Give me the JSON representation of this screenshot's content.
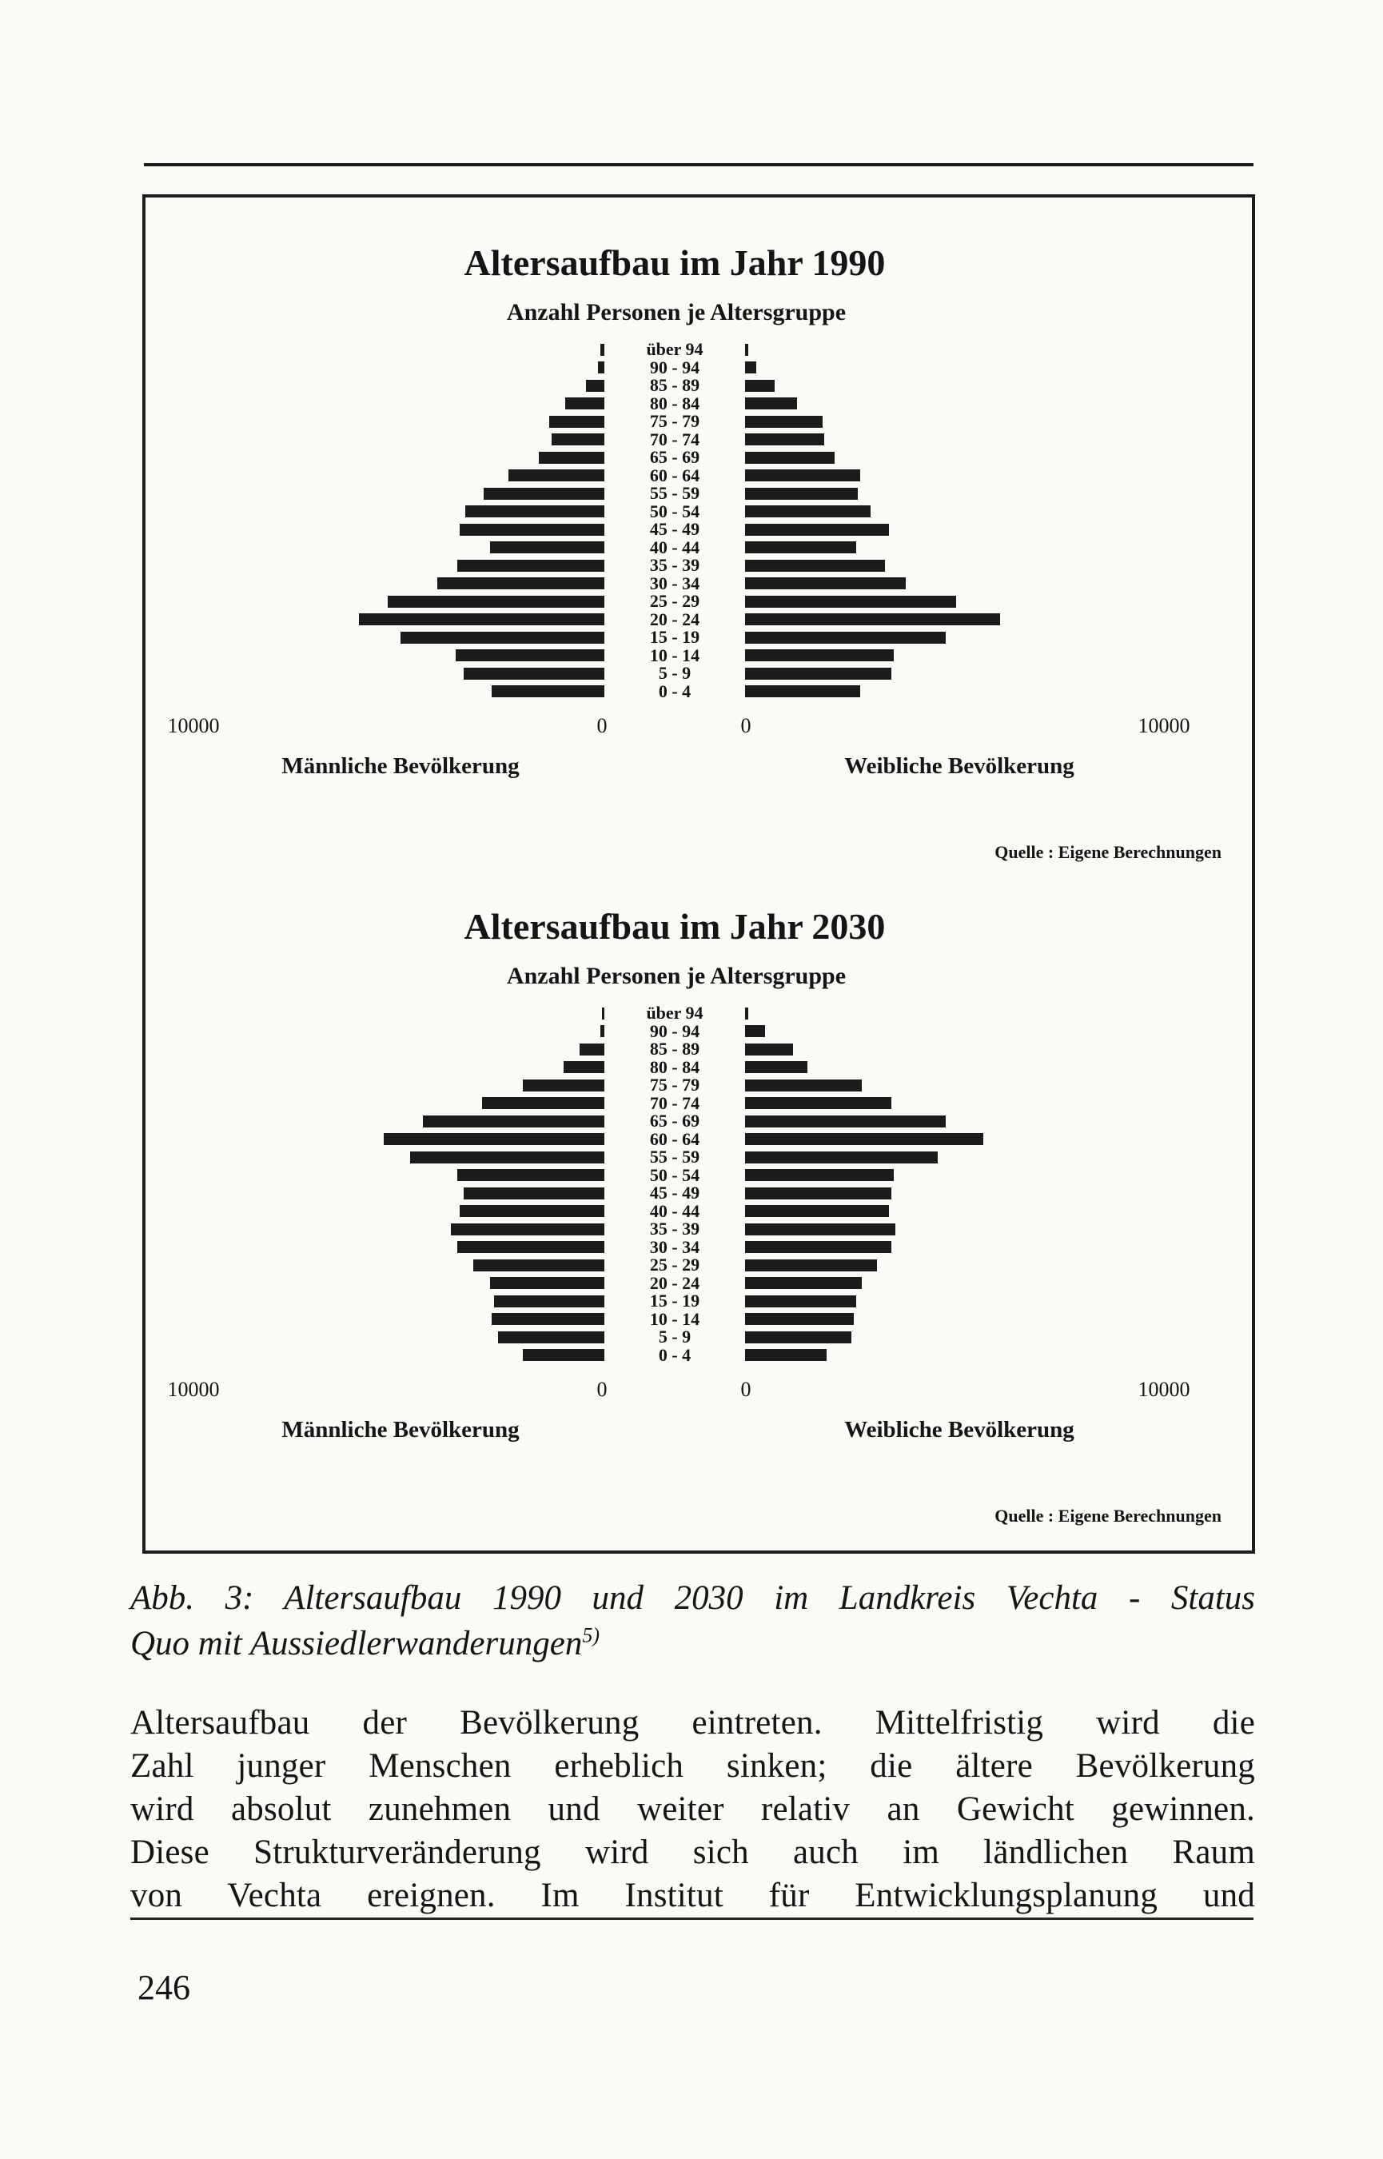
{
  "figure": {
    "caption_line1": "Abb. 3: Altersaufbau 1990 und 2030 im Landkreis Vechta - Status",
    "caption_line2": "Quo mit Aussiedlerwanderungen",
    "caption_footnote_marker": "5)"
  },
  "chart_data": [
    {
      "type": "bar",
      "subtype": "population-pyramid",
      "title": "Altersaufbau im Jahr 1990",
      "subtitle": "Anzahl Personen je Altersgruppe",
      "categories": [
        "über 94",
        "90 - 94",
        "85 - 89",
        "80 - 84",
        "75 - 79",
        "70 - 74",
        "65 - 69",
        "60 - 64",
        "55 - 59",
        "50 - 54",
        "45 - 49",
        "40 - 44",
        "35 - 39",
        "30 - 34",
        "25 - 29",
        "20 - 24",
        "15 - 19",
        "10 - 14",
        "5 - 9",
        "0 - 4"
      ],
      "series": [
        {
          "name": "Männliche Bevölkerung",
          "side": "left",
          "values": [
            90,
            150,
            450,
            950,
            1350,
            1300,
            1600,
            2350,
            2950,
            3400,
            3550,
            2800,
            3600,
            4100,
            5300,
            6000,
            5000,
            3650,
            3450,
            2750
          ]
        },
        {
          "name": "Weibliche Bevölkerung",
          "side": "right",
          "values": [
            70,
            270,
            700,
            1250,
            1850,
            1900,
            2150,
            2750,
            2700,
            3000,
            3450,
            2650,
            3350,
            3850,
            5050,
            6100,
            4800,
            3550,
            3500,
            2750
          ]
        }
      ],
      "xlim": [
        0,
        10000
      ],
      "axis_tick_labels": [
        "10000",
        "0",
        "0",
        "10000"
      ],
      "grid": "off",
      "legend": "none",
      "bar_color": "#1b1b1b",
      "source": "Quelle : Eigene Berechnungen"
    },
    {
      "type": "bar",
      "subtype": "population-pyramid",
      "title": "Altersaufbau im Jahr 2030",
      "subtitle": "Anzahl Personen je Altersgruppe",
      "categories": [
        "über 94",
        "90 - 94",
        "85 - 89",
        "80 - 84",
        "75 - 79",
        "70 - 74",
        "65 - 69",
        "60 - 64",
        "55 - 59",
        "50 - 54",
        "45 - 49",
        "40 - 44",
        "35 - 39",
        "30 - 34",
        "25 - 29",
        "20 - 24",
        "15 - 19",
        "10 - 14",
        "5 - 9",
        "0 - 4"
      ],
      "series": [
        {
          "name": "Männliche Bevölkerung",
          "side": "left",
          "values": [
            60,
            100,
            600,
            1000,
            2000,
            3000,
            4450,
            5400,
            4750,
            3600,
            3450,
            3550,
            3750,
            3600,
            3200,
            2800,
            2700,
            2750,
            2600,
            2000
          ]
        },
        {
          "name": "Weibliche Bevölkerung",
          "side": "right",
          "values": [
            70,
            470,
            1150,
            1500,
            2800,
            3500,
            4800,
            5700,
            4600,
            3550,
            3500,
            3450,
            3600,
            3500,
            3150,
            2800,
            2650,
            2600,
            2550,
            1950
          ]
        }
      ],
      "xlim": [
        0,
        10000
      ],
      "axis_tick_labels": [
        "10000",
        "0",
        "0",
        "10000"
      ],
      "grid": "off",
      "legend": "none",
      "bar_color": "#1b1b1b",
      "source": "Quelle : Eigene Berechnungen"
    }
  ],
  "body_text": {
    "lines": [
      "Altersaufbau der Bevölkerung eintreten. Mittelfristig wird die",
      "Zahl junger Menschen erheblich sinken; die ältere Bevölkerung",
      "wird absolut zunehmen und weiter relativ an Gewicht gewinnen.",
      "Diese Strukturveränderung wird sich auch im ländlichen Raum",
      "von Vechta ereignen. Im Institut für Entwicklungsplanung und"
    ]
  },
  "page_number": "246"
}
